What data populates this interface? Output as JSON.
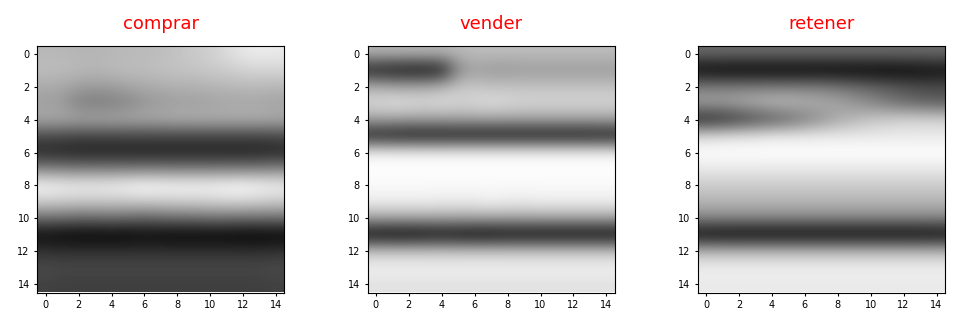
{
  "chart_data": [
    {
      "type": "heatmap",
      "title": "comprar",
      "xlim": [
        -0.5,
        14.5
      ],
      "ylim": [
        14.5,
        -0.5
      ],
      "xticks": [
        0,
        2,
        4,
        6,
        8,
        10,
        12,
        14
      ],
      "yticks": [
        0,
        2,
        4,
        6,
        8,
        10,
        12,
        14
      ],
      "cells": [
        [
          170,
          170,
          168,
          168,
          170,
          172,
          172,
          175,
          180,
          185,
          190,
          200,
          210,
          215,
          212
        ],
        [
          175,
          175,
          172,
          170,
          172,
          175,
          175,
          178,
          180,
          182,
          185,
          188,
          192,
          195,
          195
        ],
        [
          160,
          158,
          150,
          148,
          150,
          155,
          160,
          162,
          165,
          165,
          168,
          170,
          172,
          172,
          170
        ],
        [
          150,
          145,
          125,
          120,
          122,
          128,
          140,
          145,
          150,
          150,
          152,
          155,
          155,
          155,
          152
        ],
        [
          160,
          160,
          158,
          158,
          160,
          160,
          162,
          162,
          165,
          165,
          165,
          165,
          165,
          165,
          162
        ],
        [
          80,
          78,
          75,
          75,
          75,
          75,
          75,
          75,
          75,
          75,
          75,
          75,
          75,
          75,
          78
        ],
        [
          50,
          48,
          45,
          45,
          45,
          45,
          45,
          45,
          45,
          45,
          45,
          45,
          45,
          45,
          48
        ],
        [
          125,
          122,
          120,
          120,
          120,
          120,
          120,
          120,
          120,
          120,
          120,
          120,
          120,
          122,
          125
        ],
        [
          225,
          220,
          218,
          218,
          220,
          225,
          230,
          228,
          225,
          225,
          225,
          228,
          230,
          225,
          220
        ],
        [
          190,
          188,
          185,
          185,
          185,
          185,
          188,
          188,
          190,
          190,
          192,
          195,
          195,
          192,
          188
        ],
        [
          110,
          108,
          105,
          105,
          108,
          105,
          100,
          105,
          108,
          110,
          112,
          112,
          110,
          110,
          110
        ],
        [
          25,
          22,
          20,
          20,
          20,
          20,
          25,
          22,
          20,
          20,
          20,
          20,
          18,
          18,
          20
        ],
        [
          60,
          58,
          58,
          58,
          58,
          58,
          58,
          58,
          58,
          58,
          58,
          58,
          58,
          58,
          60
        ],
        [
          80,
          78,
          78,
          78,
          78,
          78,
          78,
          78,
          78,
          78,
          78,
          78,
          78,
          78,
          80
        ],
        [
          72,
          70,
          70,
          70,
          70,
          70,
          70,
          70,
          70,
          70,
          70,
          70,
          70,
          70,
          72
        ]
      ]
    },
    {
      "type": "heatmap",
      "title": "vender",
      "xlim": [
        -0.5,
        14.5
      ],
      "ylim": [
        14.5,
        -0.5
      ],
      "xticks": [
        0,
        2,
        4,
        6,
        8,
        10,
        12,
        14
      ],
      "yticks": [
        0,
        2,
        4,
        6,
        8,
        10,
        12,
        14
      ],
      "cells": [
        [
          150,
          150,
          150,
          150,
          150,
          152,
          155,
          155,
          155,
          155,
          155,
          155,
          155,
          155,
          155
        ],
        [
          45,
          40,
          38,
          38,
          45,
          120,
          135,
          130,
          130,
          132,
          132,
          132,
          132,
          132,
          132
        ],
        [
          145,
          140,
          140,
          142,
          148,
          160,
          160,
          158,
          158,
          158,
          158,
          158,
          158,
          158,
          158
        ],
        [
          175,
          180,
          178,
          175,
          178,
          172,
          175,
          178,
          175,
          172,
          172,
          172,
          172,
          172,
          172
        ],
        [
          140,
          140,
          138,
          138,
          138,
          140,
          140,
          140,
          140,
          140,
          140,
          140,
          140,
          140,
          140
        ],
        [
          45,
          42,
          40,
          40,
          40,
          40,
          40,
          40,
          40,
          40,
          40,
          40,
          40,
          40,
          42
        ],
        [
          190,
          190,
          190,
          190,
          190,
          190,
          190,
          190,
          190,
          190,
          190,
          190,
          190,
          190,
          190
        ],
        [
          200,
          200,
          200,
          200,
          200,
          200,
          200,
          200,
          200,
          200,
          200,
          200,
          200,
          200,
          200
        ],
        [
          195,
          195,
          195,
          195,
          195,
          195,
          195,
          195,
          195,
          195,
          195,
          195,
          195,
          195,
          195
        ],
        [
          190,
          190,
          190,
          190,
          188,
          188,
          188,
          192,
          188,
          188,
          190,
          190,
          190,
          190,
          190
        ],
        [
          140,
          140,
          140,
          140,
          140,
          140,
          140,
          140,
          140,
          140,
          140,
          140,
          140,
          140,
          140
        ],
        [
          30,
          28,
          28,
          30,
          32,
          30,
          28,
          28,
          30,
          30,
          30,
          30,
          30,
          30,
          30
        ],
        [
          160,
          160,
          160,
          160,
          160,
          160,
          160,
          160,
          160,
          160,
          160,
          160,
          160,
          160,
          160
        ],
        [
          190,
          190,
          190,
          190,
          190,
          190,
          190,
          190,
          190,
          190,
          190,
          190,
          190,
          190,
          190
        ],
        [
          180,
          180,
          180,
          180,
          180,
          180,
          180,
          180,
          180,
          180,
          180,
          180,
          180,
          180,
          180
        ]
      ]
    },
    {
      "type": "heatmap",
      "title": "retener",
      "xlim": [
        -0.5,
        14.5
      ],
      "ylim": [
        14.5,
        -0.5
      ],
      "xticks": [
        0,
        2,
        4,
        6,
        8,
        10,
        12,
        14
      ],
      "yticks": [
        0,
        2,
        4,
        6,
        8,
        10,
        12,
        14
      ],
      "cells": [
        [
          100,
          100,
          100,
          100,
          100,
          100,
          100,
          100,
          100,
          100,
          100,
          100,
          100,
          100,
          100
        ],
        [
          30,
          28,
          28,
          28,
          28,
          28,
          28,
          28,
          28,
          28,
          28,
          28,
          30,
          32,
          35
        ],
        [
          110,
          110,
          110,
          110,
          110,
          110,
          110,
          110,
          105,
          100,
          95,
          90,
          85,
          80,
          80
        ],
        [
          140,
          140,
          145,
          150,
          155,
          155,
          150,
          145,
          140,
          130,
          120,
          110,
          100,
          95,
          90
        ],
        [
          50,
          55,
          65,
          75,
          85,
          95,
          110,
          125,
          140,
          150,
          160,
          165,
          170,
          170,
          170
        ],
        [
          175,
          178,
          180,
          182,
          185,
          185,
          185,
          185,
          185,
          185,
          185,
          185,
          185,
          185,
          185
        ],
        [
          200,
          200,
          200,
          200,
          200,
          200,
          200,
          200,
          200,
          200,
          200,
          200,
          200,
          200,
          200
        ],
        [
          185,
          185,
          185,
          185,
          185,
          185,
          185,
          185,
          185,
          185,
          185,
          185,
          185,
          185,
          185
        ],
        [
          165,
          165,
          165,
          165,
          165,
          165,
          165,
          165,
          165,
          165,
          165,
          165,
          165,
          165,
          165
        ],
        [
          150,
          150,
          150,
          150,
          150,
          150,
          150,
          150,
          150,
          150,
          150,
          150,
          150,
          150,
          150
        ],
        [
          120,
          120,
          120,
          120,
          120,
          120,
          120,
          120,
          120,
          120,
          120,
          120,
          120,
          120,
          120
        ],
        [
          30,
          28,
          28,
          28,
          28,
          28,
          28,
          28,
          28,
          28,
          28,
          28,
          28,
          28,
          30
        ],
        [
          150,
          150,
          150,
          150,
          150,
          150,
          150,
          150,
          150,
          150,
          150,
          150,
          150,
          150,
          150
        ],
        [
          190,
          190,
          190,
          190,
          190,
          190,
          190,
          190,
          190,
          190,
          190,
          190,
          190,
          190,
          190
        ],
        [
          185,
          185,
          185,
          185,
          185,
          185,
          185,
          185,
          185,
          185,
          185,
          185,
          185,
          185,
          185
        ]
      ]
    }
  ]
}
